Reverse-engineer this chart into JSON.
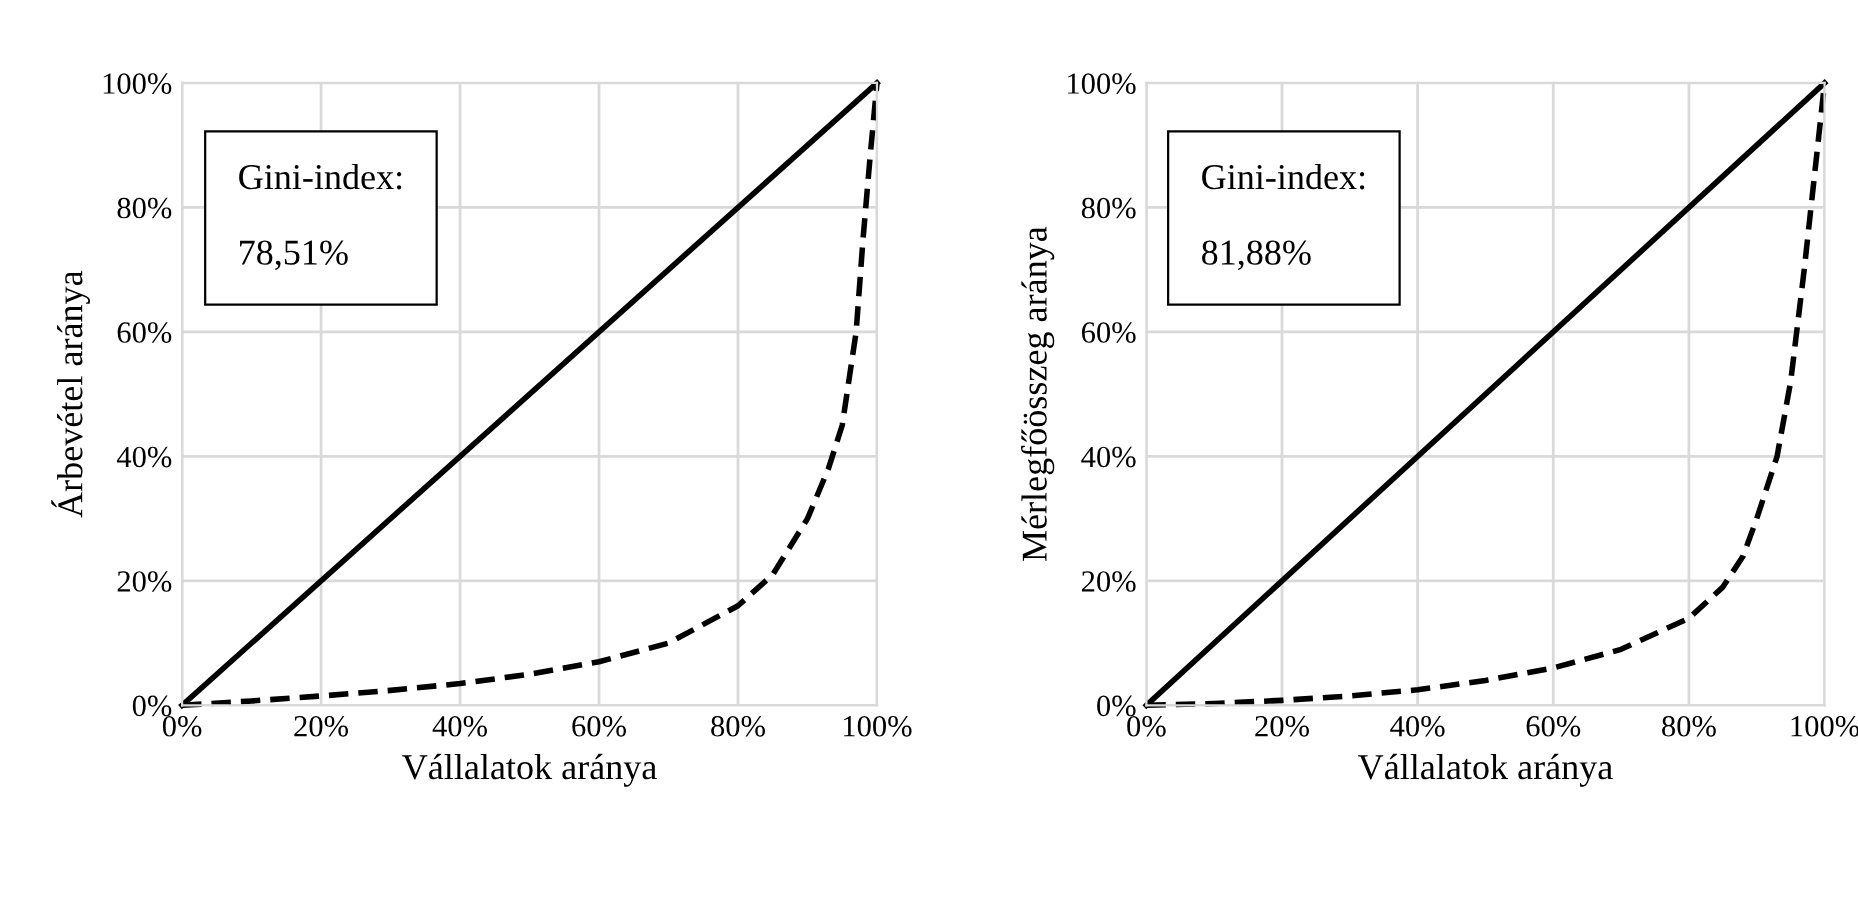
{
  "chart_data": [
    {
      "type": "line",
      "xlabel": "Vállalatok aránya",
      "ylabel": "Árbevétel aránya",
      "annotations": [
        "Gini-index:\n\n78,51%"
      ],
      "xlim": [
        0,
        100
      ],
      "ylim": [
        0,
        100
      ],
      "xticks": [
        {
          "value": 0,
          "label": "0%"
        },
        {
          "value": 20,
          "label": "20%"
        },
        {
          "value": 40,
          "label": "40%"
        },
        {
          "value": 60,
          "label": "60%"
        },
        {
          "value": 80,
          "label": "80%"
        },
        {
          "value": 100,
          "label": "100%"
        }
      ],
      "yticks": [
        {
          "value": 0,
          "label": "0%"
        },
        {
          "value": 20,
          "label": "20%"
        },
        {
          "value": 40,
          "label": "40%"
        },
        {
          "value": 60,
          "label": "60%"
        },
        {
          "value": 80,
          "label": "80%"
        },
        {
          "value": 100,
          "label": "100%"
        }
      ],
      "grid": true,
      "legend": false,
      "marker": "none",
      "series": [
        {
          "color": "#000000",
          "line_style": "solid",
          "x": [
            0,
            100
          ],
          "values": [
            0,
            100
          ]
        },
        {
          "color": "#000000",
          "line_style": "dashed",
          "x": [
            0,
            10,
            20,
            30,
            40,
            50,
            60,
            70,
            80,
            85,
            90,
            93,
            95,
            97,
            98,
            99,
            100
          ],
          "values": [
            0,
            0.7,
            1.5,
            2.4,
            3.5,
            5,
            7,
            10,
            16,
            21,
            30,
            38,
            45,
            60,
            75,
            88,
            100
          ]
        }
      ]
    },
    {
      "type": "line",
      "xlabel": "Vállalatok aránya",
      "ylabel": "Mérlegfőösszeg aránya",
      "annotations": [
        "Gini-index:\n\n81,88%"
      ],
      "xlim": [
        0,
        100
      ],
      "ylim": [
        0,
        100
      ],
      "xticks": [
        {
          "value": 0,
          "label": "0%"
        },
        {
          "value": 20,
          "label": "20%"
        },
        {
          "value": 40,
          "label": "40%"
        },
        {
          "value": 60,
          "label": "60%"
        },
        {
          "value": 80,
          "label": "80%"
        },
        {
          "value": 100,
          "label": "100%"
        }
      ],
      "yticks": [
        {
          "value": 0,
          "label": "0%"
        },
        {
          "value": 20,
          "label": "20%"
        },
        {
          "value": 40,
          "label": "40%"
        },
        {
          "value": 60,
          "label": "60%"
        },
        {
          "value": 80,
          "label": "80%"
        },
        {
          "value": 100,
          "label": "100%"
        }
      ],
      "grid": true,
      "legend": false,
      "marker": "none",
      "series": [
        {
          "color": "#000000",
          "line_style": "solid",
          "x": [
            0,
            100
          ],
          "values": [
            0,
            100
          ]
        },
        {
          "color": "#000000",
          "line_style": "dashed",
          "x": [
            0,
            10,
            20,
            30,
            40,
            50,
            60,
            70,
            80,
            85,
            88,
            90,
            93,
            95,
            97,
            98.5,
            100
          ],
          "values": [
            0,
            0.3,
            0.8,
            1.5,
            2.5,
            4,
            6,
            9,
            14,
            19,
            24,
            30,
            40,
            52,
            70,
            85,
            100
          ]
        }
      ]
    }
  ]
}
